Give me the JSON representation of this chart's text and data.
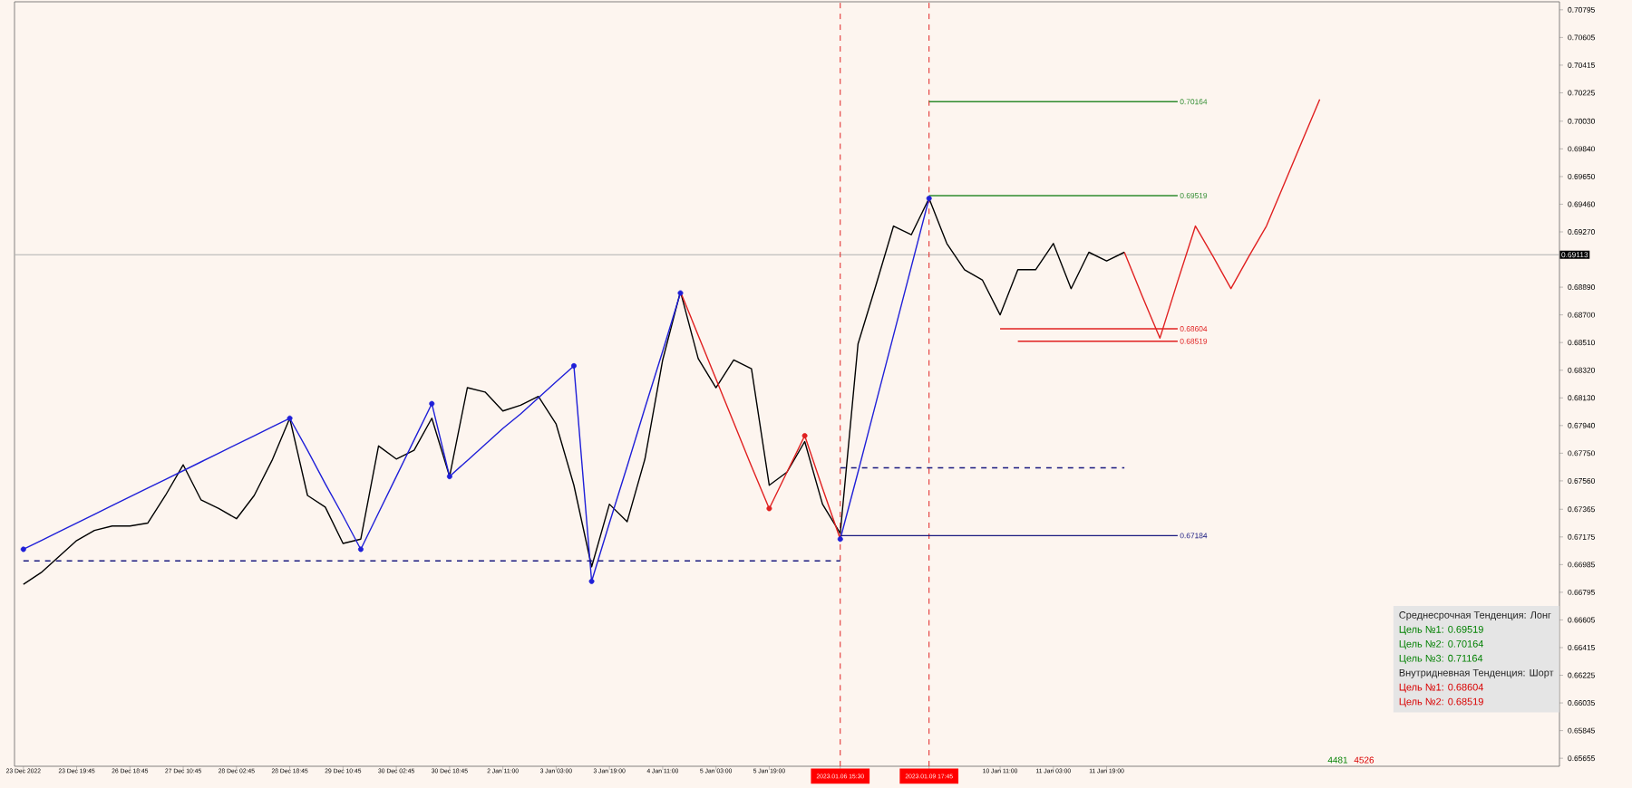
{
  "chart_data": {
    "type": "line",
    "categories": [
      "23 Dec 2022",
      null,
      null,
      "23 Dec 19:45",
      null,
      null,
      "26 Dec 18:45",
      null,
      null,
      "27 Dec 10:45",
      null,
      null,
      "28 Dec 02:45",
      null,
      null,
      "28 Dec 18:45",
      null,
      null,
      "29 Dec 10:45",
      null,
      null,
      "30 Dec 02:45",
      null,
      null,
      "30 Dec 18:45",
      null,
      null,
      "2 Jan 11:00",
      null,
      null,
      "3 Jan 03:00",
      null,
      null,
      "3 Jan 19:00",
      null,
      null,
      "4 Jan 11:00",
      null,
      null,
      "5 Jan 03:00",
      null,
      null,
      "5 Jan 19:00",
      null,
      null,
      null,
      "2023.01.06 15:30",
      null,
      null,
      null,
      null,
      "2023.01.09 17:45",
      null,
      null,
      null,
      "10 Jan 11:00",
      null,
      null,
      "11 Jan 03:00",
      null,
      null,
      "11 Jan 19:00",
      null,
      null,
      null,
      null,
      null,
      null,
      null,
      null,
      null,
      null,
      null,
      null,
      null,
      null,
      null,
      null,
      null,
      null,
      null,
      null,
      null,
      null,
      null,
      null,
      null
    ],
    "ylim": [
      0.656,
      0.7085
    ],
    "yticks": [
      0.70795,
      0.70605,
      0.70415,
      0.70225,
      {
        "value": 0.7003,
        "label": "0.70030"
      },
      {
        "value": 0.6984,
        "label": "0.69840"
      },
      {
        "value": 0.6965,
        "label": "0.69650"
      },
      {
        "value": 0.6946,
        "label": "0.69460"
      },
      {
        "value": 0.6927,
        "label": "0.69270"
      },
      {
        "value": 0.6889,
        "label": "0.68890"
      },
      {
        "value": 0.687,
        "label": "0.68700"
      },
      {
        "value": 0.6851,
        "label": "0.68510"
      },
      {
        "value": 0.6832,
        "label": "0.68320"
      },
      {
        "value": 0.6813,
        "label": "0.68130"
      },
      {
        "value": 0.6794,
        "label": "0.67940"
      },
      {
        "value": 0.6775,
        "label": "0.67750"
      },
      {
        "value": 0.6756,
        "label": "0.67560"
      },
      0.67365,
      0.67175,
      0.66985,
      0.66795,
      0.66605,
      0.66415,
      0.66225,
      0.66035,
      0.65845,
      0.65655
    ],
    "series": [
      {
        "color": "#000000",
        "values": [
          0.6685,
          0.6693,
          0.6704,
          0.6715,
          0.6722,
          0.6725,
          0.6725,
          0.6727,
          0.6746,
          0.6767,
          0.6743,
          0.6737,
          0.673,
          0.6746,
          0.677,
          0.6799,
          0.6746,
          0.6738,
          0.6713,
          0.6716,
          0.678,
          0.6771,
          0.6777,
          0.6799,
          0.6759,
          0.682,
          0.6817,
          0.6804,
          0.6808,
          0.6814,
          0.6795,
          0.6753,
          0.6697,
          0.674,
          0.6728,
          0.6771,
          0.6839,
          0.6886,
          0.684,
          0.682,
          0.6839,
          0.6833,
          0.6753,
          0.6762,
          0.6783,
          0.674,
          0.672,
          0.685,
          0.689,
          0.6931,
          0.6925,
          0.695,
          0.6919,
          0.6901,
          0.6894,
          0.687,
          0.6901,
          0.6901,
          0.6919,
          0.6888,
          0.6913,
          0.6907,
          0.6913,
          null,
          null,
          null,
          null,
          null,
          null,
          null,
          null,
          null,
          null,
          null,
          null,
          null,
          null,
          null,
          null,
          null,
          null,
          null,
          null,
          null,
          null,
          null,
          null
        ]
      },
      {
        "color": "#1f1fd8",
        "values": [
          0.6709,
          0.6715,
          0.6721,
          0.6727,
          0.6733,
          0.6739,
          0.6745,
          0.6751,
          0.6757,
          0.6763,
          0.6769,
          0.6775,
          0.6781,
          0.6787,
          0.6793,
          0.6799,
          0.6777,
          0.6754,
          0.6732,
          0.6709,
          0.6734,
          0.6759,
          0.6784,
          0.6809,
          0.6759,
          0.677,
          0.6781,
          0.6792,
          0.6802,
          0.6813,
          0.6824,
          0.6835,
          0.6687,
          0.6727,
          0.6766,
          0.6806,
          0.6845,
          0.6885,
          null,
          null,
          null,
          null,
          null,
          null,
          null,
          null,
          0.6716,
          0.6762,
          0.6809,
          0.6856,
          0.6903,
          0.695,
          null,
          null,
          null,
          null,
          null,
          null,
          null,
          null,
          null,
          null,
          null,
          null,
          null,
          null,
          null,
          null,
          null,
          null,
          null,
          null,
          null,
          null,
          null,
          null,
          null,
          null,
          null,
          null,
          null,
          null,
          null,
          null,
          null,
          null,
          null
        ]
      },
      {
        "type": "scatter",
        "color": "#1f1fd8",
        "marker": "circle",
        "values": [
          0.6709,
          null,
          null,
          null,
          null,
          null,
          null,
          null,
          null,
          null,
          null,
          null,
          null,
          null,
          null,
          0.6799,
          null,
          null,
          null,
          0.6709,
          null,
          null,
          null,
          0.6809,
          0.6759,
          null,
          null,
          null,
          null,
          null,
          null,
          0.6835,
          0.6687,
          null,
          null,
          null,
          null,
          0.6885,
          null,
          null,
          null,
          null,
          null,
          null,
          null,
          null,
          0.6716,
          null,
          null,
          null,
          null,
          0.695,
          null,
          null,
          null,
          null,
          null,
          null,
          null,
          null,
          null,
          null,
          null,
          null,
          null,
          null,
          null,
          null,
          null,
          null,
          null,
          null,
          null,
          null,
          null,
          null,
          null,
          null,
          null,
          null,
          null,
          null,
          null,
          null,
          null,
          null,
          null
        ]
      },
      {
        "color": "#e02020",
        "values": [
          null,
          null,
          null,
          null,
          null,
          null,
          null,
          null,
          null,
          null,
          null,
          null,
          null,
          null,
          null,
          null,
          null,
          null,
          null,
          null,
          null,
          null,
          null,
          null,
          null,
          null,
          null,
          null,
          null,
          null,
          null,
          null,
          null,
          null,
          null,
          null,
          null,
          0.6886,
          0.6856,
          0.6826,
          0.6796,
          0.6766,
          0.6737,
          0.6762,
          0.6787,
          0.6751,
          0.6716,
          null,
          null,
          null,
          null,
          null,
          null,
          null,
          null,
          null,
          null,
          null,
          null,
          null,
          null,
          null,
          null,
          null,
          null,
          null,
          null,
          null,
          null,
          null,
          null,
          null,
          null,
          null,
          null,
          null,
          null,
          null,
          null,
          null,
          null,
          null,
          null,
          null,
          null,
          null,
          null
        ]
      },
      {
        "type": "scatter",
        "color": "#e02020",
        "marker": "circle",
        "values": [
          null,
          null,
          null,
          null,
          null,
          null,
          null,
          null,
          null,
          null,
          null,
          null,
          null,
          null,
          null,
          null,
          null,
          null,
          null,
          null,
          null,
          null,
          null,
          null,
          null,
          null,
          null,
          null,
          null,
          null,
          null,
          null,
          null,
          null,
          null,
          null,
          null,
          null,
          null,
          null,
          null,
          null,
          0.6737,
          null,
          0.6787,
          null,
          null,
          null,
          null,
          null,
          null,
          null,
          null,
          null,
          null,
          null,
          null,
          null,
          null,
          null,
          null,
          null,
          null,
          null,
          null,
          null,
          null,
          null,
          null,
          null,
          null,
          null,
          null,
          null,
          null,
          null,
          null,
          null,
          null,
          null,
          null,
          null,
          null,
          null,
          null,
          null,
          null
        ]
      },
      {
        "color": "#e02020",
        "values": [
          null,
          null,
          null,
          null,
          null,
          null,
          null,
          null,
          null,
          null,
          null,
          null,
          null,
          null,
          null,
          null,
          null,
          null,
          null,
          null,
          null,
          null,
          null,
          null,
          null,
          null,
          null,
          null,
          null,
          null,
          null,
          null,
          null,
          null,
          null,
          null,
          null,
          null,
          null,
          null,
          null,
          null,
          null,
          null,
          null,
          null,
          null,
          null,
          null,
          null,
          null,
          null,
          null,
          null,
          null,
          null,
          null,
          null,
          null,
          null,
          null,
          null,
          0.6913,
          0.6883,
          0.6854,
          0.6893,
          0.6931,
          0.691,
          0.6888,
          0.691,
          0.6931,
          0.696,
          0.6989,
          0.7018,
          null,
          null,
          null,
          null,
          null,
          null,
          null,
          null,
          null,
          null,
          null,
          null,
          null
        ]
      },
      {
        "color": "#2e8b2e",
        "values": [
          null,
          null,
          null,
          null,
          null,
          null,
          null,
          null,
          null,
          null,
          null,
          null,
          null,
          null,
          null,
          null,
          null,
          null,
          null,
          null,
          null,
          null,
          null,
          null,
          null,
          null,
          null,
          null,
          null,
          null,
          null,
          null,
          null,
          null,
          null,
          null,
          null,
          null,
          null,
          null,
          null,
          null,
          null,
          null,
          null,
          null,
          null,
          null,
          null,
          null,
          null,
          0.70164,
          0.70164,
          0.70164,
          0.70164,
          0.70164,
          0.70164,
          0.70164,
          0.70164,
          0.70164,
          0.70164,
          0.70164,
          0.70164,
          0.70164,
          0.70164,
          0.70164,
          null,
          null,
          null,
          null,
          null,
          null,
          null,
          null,
          null,
          null,
          null,
          null,
          null,
          null,
          null,
          null,
          null,
          null,
          null,
          null,
          null
        ],
        "value_labels": [
          null,
          null,
          null,
          null,
          null,
          null,
          null,
          null,
          null,
          null,
          null,
          null,
          null,
          null,
          null,
          null,
          null,
          null,
          null,
          null,
          null,
          null,
          null,
          null,
          null,
          null,
          null,
          null,
          null,
          null,
          null,
          null,
          null,
          null,
          null,
          null,
          null,
          null,
          null,
          null,
          null,
          null,
          null,
          null,
          null,
          null,
          null,
          null,
          null,
          null,
          null,
          null,
          null,
          null,
          null,
          null,
          null,
          null,
          null,
          null,
          null,
          null,
          null,
          null,
          null,
          "0.70164",
          null,
          null,
          null,
          null,
          null,
          null,
          null,
          null,
          null,
          null,
          null,
          null,
          null,
          null,
          null,
          null,
          null,
          null,
          null,
          null,
          null
        ]
      },
      {
        "color": "#2e8b2e",
        "values": [
          null,
          null,
          null,
          null,
          null,
          null,
          null,
          null,
          null,
          null,
          null,
          null,
          null,
          null,
          null,
          null,
          null,
          null,
          null,
          null,
          null,
          null,
          null,
          null,
          null,
          null,
          null,
          null,
          null,
          null,
          null,
          null,
          null,
          null,
          null,
          null,
          null,
          null,
          null,
          null,
          null,
          null,
          null,
          null,
          null,
          null,
          null,
          null,
          null,
          null,
          null,
          0.69519,
          0.69519,
          0.69519,
          0.69519,
          0.69519,
          0.69519,
          0.69519,
          0.69519,
          0.69519,
          0.69519,
          0.69519,
          0.69519,
          0.69519,
          0.69519,
          0.69519,
          null,
          null,
          null,
          null,
          null,
          null,
          null,
          null,
          null,
          null,
          null,
          null,
          null,
          null,
          null,
          null,
          null,
          null,
          null,
          null,
          null
        ],
        "value_labels": [
          null,
          null,
          null,
          null,
          null,
          null,
          null,
          null,
          null,
          null,
          null,
          null,
          null,
          null,
          null,
          null,
          null,
          null,
          null,
          null,
          null,
          null,
          null,
          null,
          null,
          null,
          null,
          null,
          null,
          null,
          null,
          null,
          null,
          null,
          null,
          null,
          null,
          null,
          null,
          null,
          null,
          null,
          null,
          null,
          null,
          null,
          null,
          null,
          null,
          null,
          null,
          null,
          null,
          null,
          null,
          null,
          null,
          null,
          null,
          null,
          null,
          null,
          null,
          null,
          null,
          "0.69519",
          null,
          null,
          null,
          null,
          null,
          null,
          null,
          null,
          null,
          null,
          null,
          null,
          null,
          null,
          null,
          null,
          null,
          null,
          null,
          null,
          null
        ]
      },
      {
        "color": "#e02020",
        "values": [
          null,
          null,
          null,
          null,
          null,
          null,
          null,
          null,
          null,
          null,
          null,
          null,
          null,
          null,
          null,
          null,
          null,
          null,
          null,
          null,
          null,
          null,
          null,
          null,
          null,
          null,
          null,
          null,
          null,
          null,
          null,
          null,
          null,
          null,
          null,
          null,
          null,
          null,
          null,
          null,
          null,
          null,
          null,
          null,
          null,
          null,
          null,
          null,
          null,
          null,
          null,
          null,
          null,
          null,
          null,
          0.68604,
          0.68604,
          0.68604,
          0.68604,
          0.68604,
          0.68604,
          0.68604,
          0.68604,
          0.68604,
          0.68604,
          0.68604,
          null,
          null,
          null,
          null,
          null,
          null,
          null,
          null,
          null,
          null,
          null,
          null,
          null,
          null,
          null,
          null,
          null,
          null,
          null,
          null,
          null
        ],
        "value_labels": [
          null,
          null,
          null,
          null,
          null,
          null,
          null,
          null,
          null,
          null,
          null,
          null,
          null,
          null,
          null,
          null,
          null,
          null,
          null,
          null,
          null,
          null,
          null,
          null,
          null,
          null,
          null,
          null,
          null,
          null,
          null,
          null,
          null,
          null,
          null,
          null,
          null,
          null,
          null,
          null,
          null,
          null,
          null,
          null,
          null,
          null,
          null,
          null,
          null,
          null,
          null,
          null,
          null,
          null,
          null,
          null,
          null,
          null,
          null,
          null,
          null,
          null,
          null,
          null,
          null,
          "0.68604",
          null,
          null,
          null,
          null,
          null,
          null,
          null,
          null,
          null,
          null,
          null,
          null,
          null,
          null,
          null,
          null,
          null,
          null,
          null,
          null,
          null
        ]
      },
      {
        "color": "#e02020",
        "values": [
          null,
          null,
          null,
          null,
          null,
          null,
          null,
          null,
          null,
          null,
          null,
          null,
          null,
          null,
          null,
          null,
          null,
          null,
          null,
          null,
          null,
          null,
          null,
          null,
          null,
          null,
          null,
          null,
          null,
          null,
          null,
          null,
          null,
          null,
          null,
          null,
          null,
          null,
          null,
          null,
          null,
          null,
          null,
          null,
          null,
          null,
          null,
          null,
          null,
          null,
          null,
          null,
          null,
          null,
          null,
          null,
          0.68519,
          0.68519,
          0.68519,
          0.68519,
          0.68519,
          0.68519,
          0.68519,
          0.68519,
          0.68519,
          0.68519,
          null,
          null,
          null,
          null,
          null,
          null,
          null,
          null,
          null,
          null,
          null,
          null,
          null,
          null,
          null,
          null,
          null,
          null,
          null,
          null,
          null
        ],
        "value_labels": [
          null,
          null,
          null,
          null,
          null,
          null,
          null,
          null,
          null,
          null,
          null,
          null,
          null,
          null,
          null,
          null,
          null,
          null,
          null,
          null,
          null,
          null,
          null,
          null,
          null,
          null,
          null,
          null,
          null,
          null,
          null,
          null,
          null,
          null,
          null,
          null,
          null,
          null,
          null,
          null,
          null,
          null,
          null,
          null,
          null,
          null,
          null,
          null,
          null,
          null,
          null,
          null,
          null,
          null,
          null,
          null,
          null,
          null,
          null,
          null,
          null,
          null,
          null,
          null,
          null,
          "0.68519",
          null,
          null,
          null,
          null,
          null,
          null,
          null,
          null,
          null,
          null,
          null,
          null,
          null,
          null,
          null,
          null,
          null,
          null,
          null,
          null,
          null
        ]
      },
      {
        "color": "#1a1a80",
        "values": [
          null,
          null,
          null,
          null,
          null,
          null,
          null,
          null,
          null,
          null,
          null,
          null,
          null,
          null,
          null,
          null,
          null,
          null,
          null,
          null,
          null,
          null,
          null,
          null,
          null,
          null,
          null,
          null,
          null,
          null,
          null,
          null,
          null,
          null,
          null,
          null,
          null,
          null,
          null,
          null,
          null,
          null,
          null,
          null,
          null,
          null,
          0.67184,
          0.67184,
          0.67184,
          0.67184,
          0.67184,
          0.67184,
          0.67184,
          0.67184,
          0.67184,
          0.67184,
          0.67184,
          0.67184,
          0.67184,
          0.67184,
          0.67184,
          0.67184,
          0.67184,
          0.67184,
          0.67184,
          0.67184,
          null,
          null,
          null,
          null,
          null,
          null,
          null,
          null,
          null,
          null,
          null,
          null,
          null,
          null,
          null,
          null,
          null,
          null,
          null,
          null,
          null
        ],
        "value_labels": [
          null,
          null,
          null,
          null,
          null,
          null,
          null,
          null,
          null,
          null,
          null,
          null,
          null,
          null,
          null,
          null,
          null,
          null,
          null,
          null,
          null,
          null,
          null,
          null,
          null,
          null,
          null,
          null,
          null,
          null,
          null,
          null,
          null,
          null,
          null,
          null,
          null,
          null,
          null,
          null,
          null,
          null,
          null,
          null,
          null,
          null,
          null,
          null,
          null,
          null,
          null,
          null,
          null,
          null,
          null,
          null,
          null,
          null,
          null,
          null,
          null,
          null,
          null,
          null,
          null,
          "0.67184",
          null,
          null,
          null,
          null,
          null,
          null,
          null,
          null,
          null,
          null,
          null,
          null,
          null,
          null,
          null,
          null,
          null,
          null,
          null,
          null,
          null
        ]
      },
      {
        "color": "#1a1a80",
        "line_style": "dashed",
        "values": [
          0.6701,
          0.6701,
          0.6701,
          0.6701,
          0.6701,
          0.6701,
          0.6701,
          0.6701,
          0.6701,
          0.6701,
          0.6701,
          0.6701,
          0.6701,
          0.6701,
          0.6701,
          0.6701,
          0.6701,
          0.6701,
          0.6701,
          0.6701,
          0.6701,
          0.6701,
          0.6701,
          0.6701,
          0.6701,
          0.6701,
          0.6701,
          0.6701,
          0.6701,
          0.6701,
          0.6701,
          0.6701,
          0.6701,
          0.6701,
          0.6701,
          0.6701,
          0.6701,
          0.6701,
          0.6701,
          0.6701,
          0.6701,
          0.6701,
          0.6701,
          0.6701,
          0.6701,
          0.6701,
          0.6701,
          null,
          null,
          null,
          null,
          null,
          null,
          null,
          null,
          null,
          null,
          null,
          null,
          null,
          null,
          null,
          null,
          null,
          null,
          null,
          null,
          null,
          null,
          null,
          null,
          null,
          null,
          null,
          null,
          null,
          null,
          null,
          null,
          null,
          null,
          null,
          null,
          null,
          null,
          null,
          null
        ]
      },
      {
        "color": "#1a1a80",
        "line_style": "dashed",
        "values": [
          null,
          null,
          null,
          null,
          null,
          null,
          null,
          null,
          null,
          null,
          null,
          null,
          null,
          null,
          null,
          null,
          null,
          null,
          null,
          null,
          null,
          null,
          null,
          null,
          null,
          null,
          null,
          null,
          null,
          null,
          null,
          null,
          null,
          null,
          null,
          null,
          null,
          null,
          null,
          null,
          null,
          null,
          null,
          null,
          null,
          null,
          0.6765,
          0.6765,
          0.6765,
          0.6765,
          0.6765,
          0.6765,
          0.6765,
          0.6765,
          0.6765,
          0.6765,
          0.6765,
          0.6765,
          0.6765,
          0.6765,
          0.6765,
          0.6765,
          0.6765,
          null,
          null,
          null,
          null,
          null,
          null,
          null,
          null,
          null,
          null,
          null,
          null,
          null,
          null,
          null,
          null,
          null,
          null,
          null,
          null,
          null,
          null,
          null,
          null
        ]
      }
    ],
    "ref_lines": [
      {
        "axis": "y",
        "value": 0.69113,
        "label": "0.69113",
        "color": "#b0b0b0",
        "line_style": "solid"
      },
      {
        "axis": "x",
        "value": "2023.01.06 15:30",
        "color": "#e02020",
        "line_style": "dashed"
      },
      {
        "axis": "x",
        "value": "2023.01.09 17:45",
        "color": "#e02020",
        "line_style": "dashed"
      }
    ],
    "annotations": [
      "Среднесрочная Тенденция: Лонг",
      "Цель №1: 0.69519",
      "Цель №2: 0.70164",
      "Цель №3: 0.71164",
      "Внутридневная Тенденция: Шорт",
      "Цель №1: 0.68604",
      "Цель №2: 0.68519",
      "4481",
      "4526"
    ]
  }
}
